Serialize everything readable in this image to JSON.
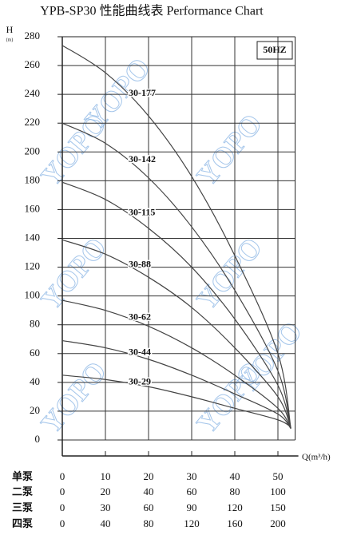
{
  "chart_data": {
    "type": "line",
    "title": "YPB-SP30 性能曲线表 Performance Chart",
    "y_label": "H",
    "y_unit": "(m)",
    "x_label": "Q(m³/h)",
    "annotation": "50HZ",
    "watermark": "YOPO",
    "x": [
      0,
      10,
      20,
      30,
      40,
      50,
      53
    ],
    "xlim": [
      0,
      54
    ],
    "xticks": [
      0,
      10,
      20,
      30,
      40,
      50
    ],
    "ylim": [
      0,
      280
    ],
    "yticks": [
      0,
      20,
      40,
      60,
      80,
      100,
      120,
      140,
      160,
      180,
      200,
      220,
      240,
      260,
      280
    ],
    "grid": true,
    "color": "#444444",
    "series": [
      {
        "name": "30-177",
        "values": [
          274,
          255,
          225,
          183,
          128,
          60,
          8
        ]
      },
      {
        "name": "30-142",
        "values": [
          220,
          206,
          182,
          148,
          104,
          48,
          8
        ]
      },
      {
        "name": "30-115",
        "values": [
          179,
          167,
          147,
          120,
          84,
          38,
          8
        ]
      },
      {
        "name": "30-88",
        "values": [
          139,
          129,
          113,
          92,
          64,
          30,
          8
        ]
      },
      {
        "name": "30-62",
        "values": [
          97,
          90,
          79,
          64,
          45,
          22,
          8
        ]
      },
      {
        "name": "30-44",
        "values": [
          69,
          64,
          56,
          45,
          32,
          18,
          8
        ]
      },
      {
        "name": "30-29",
        "values": [
          45,
          42,
          37,
          30,
          22,
          14,
          9
        ]
      }
    ],
    "pump_rows": [
      {
        "label": "单泵"
      },
      {
        "label": "二泵",
        "values": [
          0,
          20,
          40,
          60,
          80,
          100
        ]
      },
      {
        "label": "三泵",
        "values": [
          0,
          30,
          60,
          90,
          120,
          150
        ]
      },
      {
        "label": "四泵",
        "values": [
          0,
          40,
          80,
          120,
          160,
          200
        ]
      }
    ]
  }
}
